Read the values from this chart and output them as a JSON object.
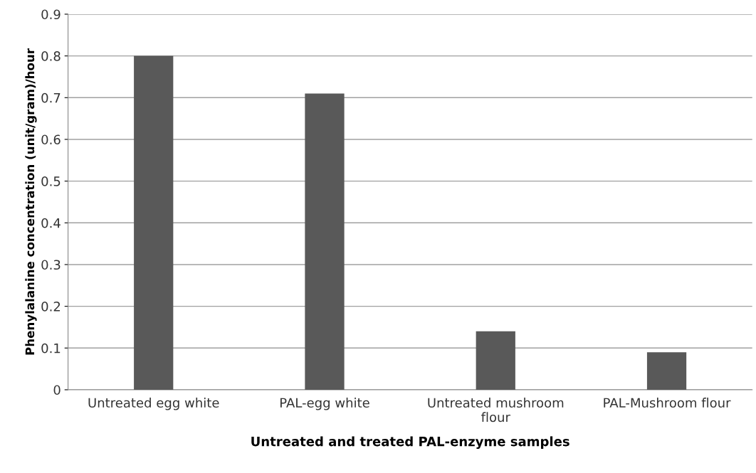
{
  "chart_data": {
    "type": "bar",
    "xlabel": "Untreated and treated PAL-enzyme samples",
    "ylabel": "Phenylalanine concentration (unit/gram)/hour",
    "categories": [
      "Untreated egg white",
      "PAL-egg white",
      "Untreated mushroom flour",
      "PAL-Mushroom flour"
    ],
    "values": [
      0.8,
      0.71,
      0.14,
      0.09
    ],
    "color": "#595959",
    "ylim": [
      0,
      0.9
    ],
    "yticks": [
      0,
      0.1,
      0.2,
      0.3,
      0.4,
      0.5,
      0.6,
      0.7,
      0.8,
      0.9
    ],
    "grid": "y",
    "legend": false
  }
}
